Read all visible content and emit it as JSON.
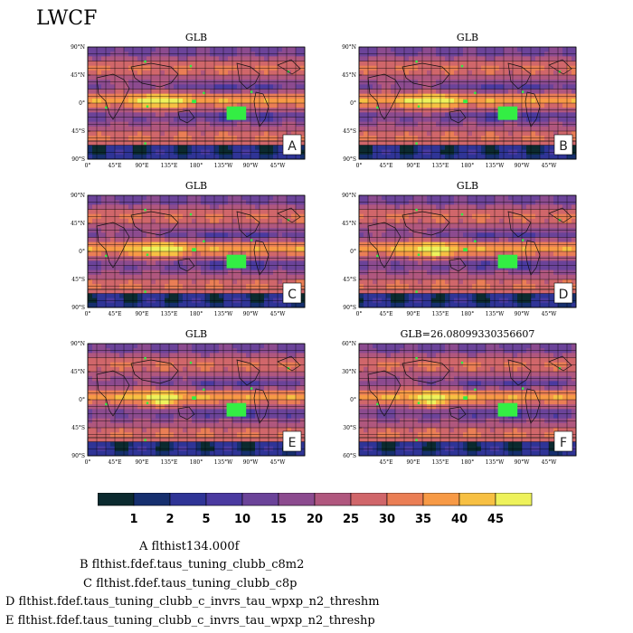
{
  "figure_title": "LWCF",
  "panels": [
    {
      "id": "A",
      "title": "GLB",
      "yticks": [
        "90°N",
        "45°N",
        "0°",
        "45°S",
        "90°S"
      ],
      "xticks": [
        "0°",
        "45°E",
        "90°E",
        "135°E",
        "180°",
        "135°W",
        "90°W",
        "45°W"
      ]
    },
    {
      "id": "B",
      "title": "GLB",
      "yticks": [
        "90°N",
        "45°N",
        "0°",
        "45°S",
        "90°S"
      ],
      "xticks": [
        "0°",
        "45°E",
        "90°E",
        "135°E",
        "180°",
        "135°W",
        "90°W",
        "45°W"
      ]
    },
    {
      "id": "C",
      "title": "GLB",
      "yticks": [
        "90°N",
        "45°N",
        "0°",
        "45°S",
        "90°S"
      ],
      "xticks": [
        "0°",
        "45°E",
        "90°E",
        "135°E",
        "180°",
        "135°W",
        "90°W",
        "45°W"
      ]
    },
    {
      "id": "D",
      "title": "GLB",
      "yticks": [
        "90°N",
        "45°N",
        "0°",
        "45°S",
        "90°S"
      ],
      "xticks": [
        "0°",
        "45°E",
        "90°E",
        "135°E",
        "180°",
        "135°W",
        "90°W",
        "45°W"
      ]
    },
    {
      "id": "E",
      "title": "GLB",
      "yticks": [
        "90°N",
        "45°N",
        "0°",
        "45°S",
        "90°S"
      ],
      "xticks": [
        "0°",
        "45°E",
        "90°E",
        "135°E",
        "180°",
        "135°W",
        "90°W",
        "45°W"
      ]
    },
    {
      "id": "F",
      "title": "GLB=26.08099330356607",
      "yticks": [
        "60°N",
        "30°N",
        "0°",
        "30°S",
        "60°S"
      ],
      "xticks": [
        "45°E",
        "90°E",
        "135°E",
        "180°",
        "135°W",
        "90°W",
        "45°W"
      ]
    }
  ],
  "colorbar": {
    "labels": [
      "1",
      "2",
      "5",
      "10",
      "15",
      "20",
      "25",
      "30",
      "35",
      "40",
      "45"
    ],
    "colors": [
      "#0b2a2f",
      "#162f6e",
      "#2f3496",
      "#4a3aa0",
      "#6b4399",
      "#8c4b8f",
      "#b0577e",
      "#d0666a",
      "#ea7e55",
      "#f79a46",
      "#f7c043",
      "#eef25b"
    ]
  },
  "legend": [
    "A  flthist134.000f",
    "B  flthist.fdef.taus_tuning_clubb_c8m2",
    "C  flthist.fdef.taus_tuning_clubb_c8p",
    "D  flthist.fdef.taus_tuning_clubb_c_invrs_tau_wpxp_n2_threshm",
    "E  flthist.fdef.taus_tuning_clubb_c_invrs_tau_wpxp_n2_threshp"
  ],
  "chart_data": {
    "type": "heatmap",
    "title": "LWCF",
    "variable": "LWCF",
    "colorbar_levels": [
      1,
      2,
      5,
      10,
      15,
      20,
      25,
      30,
      35,
      40,
      45
    ],
    "panels": [
      {
        "label": "A",
        "title": "GLB",
        "case": "flthist134.000f",
        "xlim": [
          0,
          360
        ],
        "ylim": [
          -90,
          90
        ]
      },
      {
        "label": "B",
        "title": "GLB",
        "case": "flthist.fdef.taus_tuning_clubb_c8m2",
        "xlim": [
          0,
          360
        ],
        "ylim": [
          -90,
          90
        ]
      },
      {
        "label": "C",
        "title": "GLB",
        "case": "flthist.fdef.taus_tuning_clubb_c8p",
        "xlim": [
          0,
          360
        ],
        "ylim": [
          -90,
          90
        ]
      },
      {
        "label": "D",
        "title": "GLB",
        "case": "flthist.fdef.taus_tuning_clubb_c_invrs_tau_wpxp_n2_threshm",
        "xlim": [
          0,
          360
        ],
        "ylim": [
          -90,
          90
        ]
      },
      {
        "label": "E",
        "title": "GLB",
        "case": "flthist.fdef.taus_tuning_clubb_c_invrs_tau_wpxp_n2_threshp",
        "xlim": [
          0,
          360
        ],
        "ylim": [
          -90,
          90
        ]
      },
      {
        "label": "F",
        "title": "GLB=26.08099330356607",
        "global_mean": 26.08099330356607,
        "xlim": [
          0,
          360
        ],
        "ylim": [
          -90,
          90
        ]
      }
    ]
  }
}
